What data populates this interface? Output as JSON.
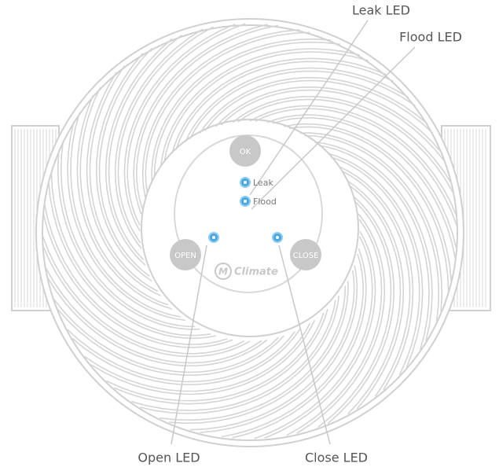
{
  "callouts": [
    "Leak LED",
    "Flood LED",
    "Open LED",
    "Close LED"
  ],
  "device": {
    "buttons": [
      "OK",
      "OPEN",
      "CLOSE"
    ],
    "led_labels": [
      "Leak",
      "Flood"
    ],
    "logo": {
      "mark": "M",
      "text": "Climate"
    }
  }
}
